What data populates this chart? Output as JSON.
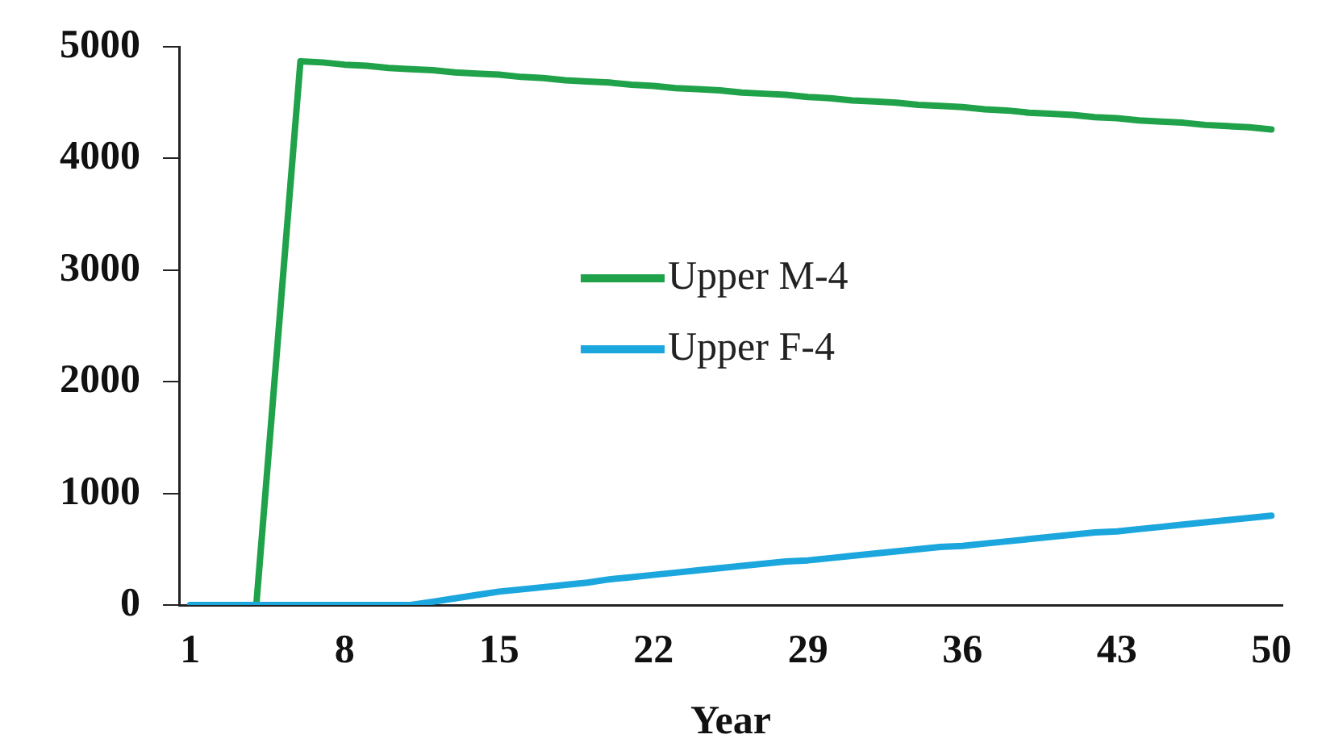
{
  "chart_data": {
    "type": "line",
    "xlabel": "Year",
    "categories": [
      "1",
      null,
      null,
      null,
      null,
      null,
      null,
      "8",
      null,
      null,
      null,
      null,
      null,
      null,
      "15",
      null,
      null,
      null,
      null,
      null,
      null,
      "22",
      null,
      null,
      null,
      null,
      null,
      null,
      "29",
      null,
      null,
      null,
      null,
      null,
      null,
      "36",
      null,
      null,
      null,
      null,
      null,
      null,
      "43",
      null,
      null,
      null,
      null,
      null,
      null,
      "50"
    ],
    "series": [
      {
        "name": "Upper M-4",
        "color": "#1fa24a",
        "values": [
          null,
          null,
          null,
          0,
          2430,
          4870,
          4860,
          4840,
          4830,
          4810,
          4800,
          4790,
          4770,
          4760,
          4750,
          4730,
          4720,
          4700,
          4690,
          4680,
          4660,
          4650,
          4630,
          4620,
          4610,
          4590,
          4580,
          4570,
          4550,
          4540,
          4520,
          4510,
          4500,
          4480,
          4470,
          4460,
          4440,
          4430,
          4410,
          4400,
          4390,
          4370,
          4360,
          4340,
          4330,
          4320,
          4300,
          4290,
          4280,
          4260
        ]
      },
      {
        "name": "Upper F-4",
        "color": "#1ba6dd",
        "values": [
          0,
          0,
          0,
          0,
          0,
          0,
          0,
          0,
          0,
          0,
          0,
          30,
          60,
          90,
          120,
          140,
          160,
          180,
          200,
          230,
          250,
          270,
          290,
          310,
          330,
          350,
          370,
          390,
          400,
          420,
          440,
          460,
          480,
          500,
          520,
          530,
          550,
          570,
          590,
          610,
          630,
          650,
          660,
          680,
          700,
          720,
          740,
          760,
          780,
          800
        ]
      }
    ],
    "ylim": [
      0,
      5000
    ],
    "yticks": [
      0,
      1000,
      2000,
      3000,
      4000,
      5000
    ],
    "grid": false,
    "legend": "center",
    "marker": "none",
    "line_style": "solid"
  }
}
